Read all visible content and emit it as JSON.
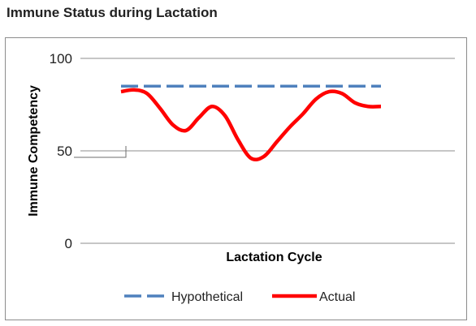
{
  "title": "Immune Status during Lactation",
  "chart_data": {
    "type": "line",
    "xlabel": "Lactation Cycle",
    "ylabel": "Immune Competency",
    "ylim": [
      0,
      100
    ],
    "yticks": [
      0,
      50,
      100
    ],
    "grid": true,
    "legend_position": "bottom",
    "x": [
      0,
      5,
      10,
      15,
      20,
      25,
      30,
      35,
      40,
      45,
      50,
      55,
      60,
      65,
      70,
      75,
      80,
      85,
      90,
      95,
      100
    ],
    "series": [
      {
        "name": "Hypothetical",
        "style": "dashed",
        "color": "#4F81BD",
        "values": [
          85,
          85,
          85,
          85,
          85,
          85,
          85,
          85,
          85,
          85,
          85,
          85,
          85,
          85,
          85,
          85,
          85,
          85,
          85,
          85,
          85
        ]
      },
      {
        "name": "Actual",
        "style": "solid",
        "color": "#FF0000",
        "values": [
          82,
          83,
          81,
          73,
          64,
          61,
          68,
          74,
          69,
          56,
          46,
          47,
          55,
          63,
          70,
          78,
          82,
          81,
          76,
          74,
          74
        ]
      }
    ]
  }
}
